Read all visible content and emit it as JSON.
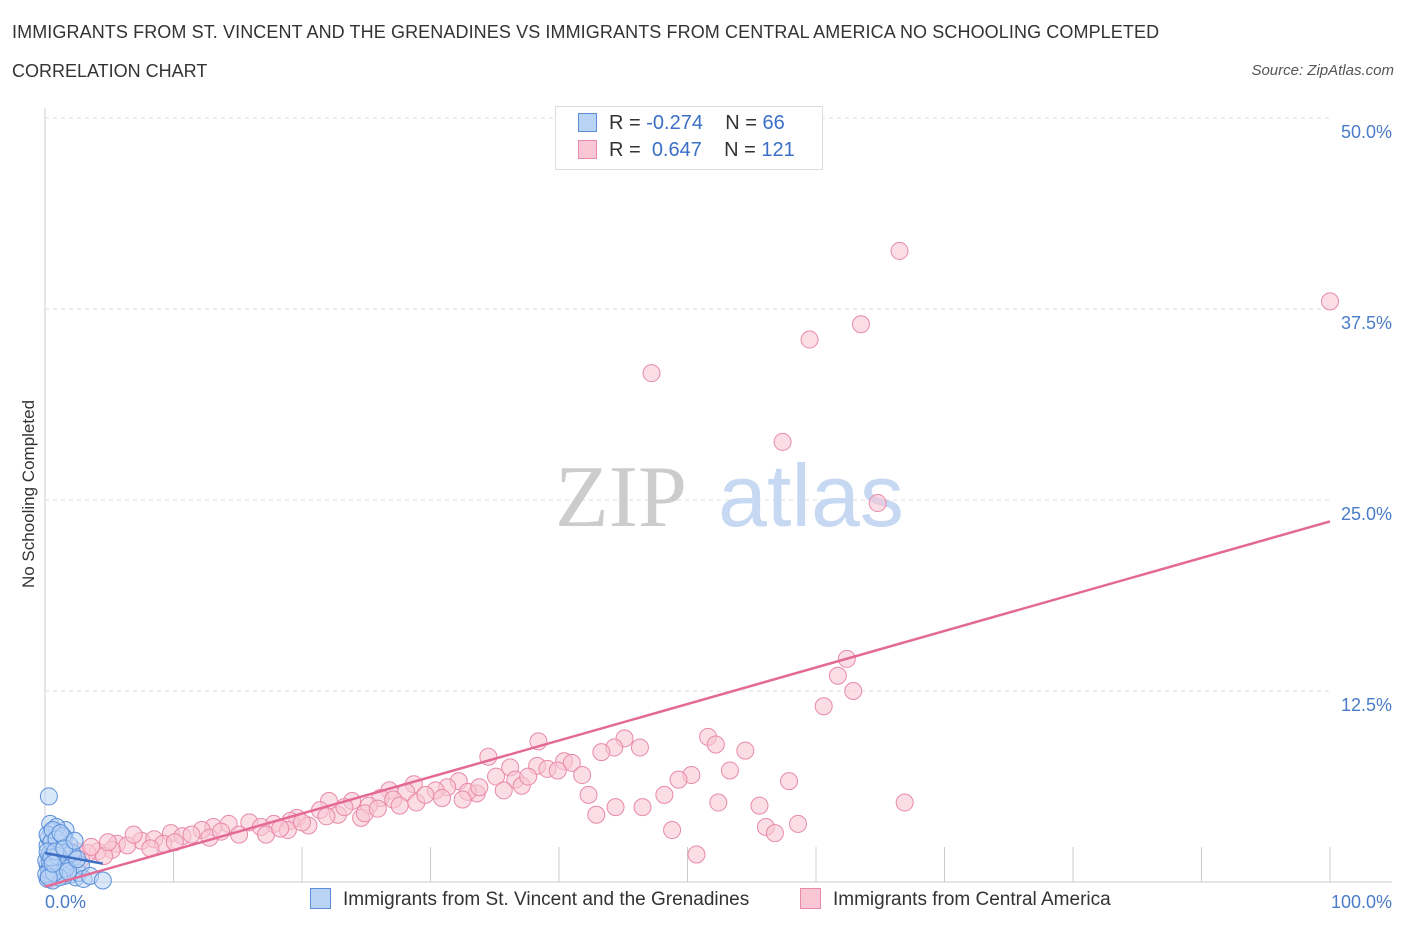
{
  "title": "IMMIGRANTS FROM ST. VINCENT AND THE GRENADINES VS IMMIGRANTS FROM CENTRAL AMERICA NO SCHOOLING COMPLETED",
  "subtitle": "CORRELATION CHART",
  "source": "Source: ZipAtlas.com",
  "watermark": {
    "zip": "ZIP",
    "atlas": "atlas"
  },
  "legend": {
    "rows": [
      {
        "r_label": "R =",
        "r_value": "-0.274",
        "n_label": "N =",
        "n_value": "66"
      },
      {
        "r_label": "R =",
        "r_value": "0.647",
        "n_label": "N =",
        "n_value": "121"
      }
    ]
  },
  "bottom_legend": [
    {
      "label": "Immigrants from St. Vincent and the Grenadines"
    },
    {
      "label": "Immigrants from Central America"
    }
  ],
  "colors": {
    "blue_fill": "#b9d3f5",
    "blue_stroke": "#5a8fd8",
    "pink_fill": "#f9c6d6",
    "pink_stroke": "#e88aa8",
    "trend_pink": "#e46a96",
    "trend_blue": "#3d6fc4",
    "grid": "#dddddd",
    "tick_text": "#4a7cc7"
  },
  "chart_data": {
    "type": "scatter",
    "title": "IMMIGRANTS FROM ST. VINCENT AND THE GRENADINES VS IMMIGRANTS FROM CENTRAL AMERICA NO SCHOOLING COMPLETED",
    "xlabel": "",
    "ylabel": "No Schooling Completed",
    "xlim": [
      0,
      100
    ],
    "ylim": [
      0,
      50
    ],
    "x_tick_labels": [
      "0.0%",
      "100.0%"
    ],
    "y_ticks": [
      12.5,
      25,
      37.5,
      50
    ],
    "y_tick_labels": [
      "12.5%",
      "25.0%",
      "37.5%",
      "50.0%"
    ],
    "grid": true,
    "legend_position": "top-center",
    "series": [
      {
        "name": "Immigrants from St. Vincent and the Grenadines",
        "R": -0.274,
        "N": 66,
        "trend": [
          [
            0,
            1.9
          ],
          [
            4.5,
            1.2
          ]
        ],
        "points": [
          [
            0.3,
            5.6
          ],
          [
            0.4,
            3.8
          ],
          [
            0.5,
            3.3
          ],
          [
            1.6,
            3.4
          ],
          [
            1.5,
            2.9
          ],
          [
            0.2,
            2.4
          ],
          [
            0.6,
            2.2
          ],
          [
            0.8,
            2.7
          ],
          [
            1.0,
            3.1
          ],
          [
            1.2,
            2.5
          ],
          [
            0.9,
            1.9
          ],
          [
            0.3,
            1.7
          ],
          [
            0.7,
            1.5
          ],
          [
            1.4,
            1.8
          ],
          [
            1.8,
            2.0
          ],
          [
            0.2,
            1.1
          ],
          [
            0.5,
            0.9
          ],
          [
            1.1,
            1.2
          ],
          [
            0.4,
            0.6
          ],
          [
            0.8,
            0.4
          ],
          [
            1.3,
            0.7
          ],
          [
            2.0,
            0.5
          ],
          [
            2.4,
            0.3
          ],
          [
            0.2,
            0.2
          ],
          [
            0.6,
            0.1
          ],
          [
            1.7,
            1.3
          ],
          [
            0.3,
            2.9
          ],
          [
            0.9,
            3.6
          ],
          [
            0.1,
            1.4
          ],
          [
            1.0,
            0.8
          ],
          [
            2.2,
            1.6
          ],
          [
            0.7,
            2.3
          ],
          [
            1.5,
            0.4
          ],
          [
            0.4,
            1.9
          ],
          [
            1.2,
            1.4
          ],
          [
            2.6,
            0.6
          ],
          [
            0.2,
            3.1
          ],
          [
            0.8,
            1.0
          ],
          [
            1.9,
            2.4
          ],
          [
            0.5,
            2.6
          ],
          [
            1.3,
            2.1
          ],
          [
            0.3,
            0.8
          ],
          [
            1.6,
            0.9
          ],
          [
            2.8,
            1.1
          ],
          [
            0.6,
            3.4
          ],
          [
            1.1,
            0.3
          ],
          [
            0.9,
            2.8
          ],
          [
            0.4,
            1.3
          ],
          [
            2.1,
            1.9
          ],
          [
            1.4,
            3.0
          ],
          [
            0.1,
            0.5
          ],
          [
            3.0,
            0.2
          ],
          [
            0.7,
            0.6
          ],
          [
            1.8,
            0.7
          ],
          [
            0.2,
            2.0
          ],
          [
            1.0,
            1.7
          ],
          [
            2.5,
            1.5
          ],
          [
            0.5,
            1.6
          ],
          [
            1.2,
            3.2
          ],
          [
            0.8,
            2.0
          ],
          [
            3.5,
            0.4
          ],
          [
            0.3,
            0.3
          ],
          [
            1.5,
            2.2
          ],
          [
            2.3,
            2.7
          ],
          [
            0.6,
            1.2
          ],
          [
            4.5,
            0.1
          ]
        ]
      },
      {
        "name": "Immigrants from Central America",
        "R": 0.647,
        "N": 121,
        "trend": [
          [
            0,
            -0.3
          ],
          [
            100,
            23.6
          ]
        ],
        "points": [
          [
            66.5,
            41.3
          ],
          [
            100,
            38.0
          ],
          [
            63.5,
            36.5
          ],
          [
            59.5,
            35.5
          ],
          [
            47.2,
            33.3
          ],
          [
            57.4,
            28.8
          ],
          [
            64.8,
            24.8
          ],
          [
            62.4,
            14.6
          ],
          [
            61.7,
            13.5
          ],
          [
            62.9,
            12.5
          ],
          [
            60.6,
            11.5
          ],
          [
            51.6,
            9.5
          ],
          [
            52.2,
            9.0
          ],
          [
            45.1,
            9.4
          ],
          [
            44.3,
            8.8
          ],
          [
            46.3,
            8.8
          ],
          [
            54.5,
            8.6
          ],
          [
            43.3,
            8.5
          ],
          [
            38.4,
            9.2
          ],
          [
            34.5,
            8.2
          ],
          [
            40.4,
            7.9
          ],
          [
            41.0,
            7.8
          ],
          [
            38.3,
            7.6
          ],
          [
            39.1,
            7.4
          ],
          [
            36.2,
            7.5
          ],
          [
            39.9,
            7.3
          ],
          [
            53.3,
            7.3
          ],
          [
            50.3,
            7.0
          ],
          [
            41.8,
            7.0
          ],
          [
            35.1,
            6.9
          ],
          [
            36.6,
            6.7
          ],
          [
            49.3,
            6.7
          ],
          [
            57.9,
            6.6
          ],
          [
            32.2,
            6.6
          ],
          [
            37.1,
            6.3
          ],
          [
            31.3,
            6.2
          ],
          [
            28.7,
            6.4
          ],
          [
            30.4,
            6.0
          ],
          [
            26.8,
            6.0
          ],
          [
            28.1,
            5.9
          ],
          [
            33.6,
            5.8
          ],
          [
            32.9,
            5.9
          ],
          [
            42.3,
            5.7
          ],
          [
            48.2,
            5.7
          ],
          [
            26.1,
            5.5
          ],
          [
            27.1,
            5.4
          ],
          [
            23.9,
            5.3
          ],
          [
            28.9,
            5.2
          ],
          [
            25.2,
            5.0
          ],
          [
            22.1,
            5.3
          ],
          [
            52.4,
            5.2
          ],
          [
            55.6,
            5.0
          ],
          [
            66.9,
            5.2
          ],
          [
            44.4,
            4.9
          ],
          [
            46.5,
            4.9
          ],
          [
            21.4,
            4.7
          ],
          [
            22.8,
            4.4
          ],
          [
            24.6,
            4.2
          ],
          [
            19.6,
            4.2
          ],
          [
            19.1,
            4.0
          ],
          [
            15.9,
            3.9
          ],
          [
            17.8,
            3.8
          ],
          [
            42.9,
            4.4
          ],
          [
            56.1,
            3.6
          ],
          [
            58.6,
            3.8
          ],
          [
            48.8,
            3.4
          ],
          [
            16.8,
            3.6
          ],
          [
            14.3,
            3.8
          ],
          [
            13.1,
            3.6
          ],
          [
            12.2,
            3.4
          ],
          [
            18.9,
            3.4
          ],
          [
            20.5,
            3.7
          ],
          [
            9.8,
            3.2
          ],
          [
            10.7,
            3.0
          ],
          [
            11.4,
            3.1
          ],
          [
            7.5,
            2.7
          ],
          [
            8.5,
            2.8
          ],
          [
            9.2,
            2.5
          ],
          [
            5.6,
            2.5
          ],
          [
            6.4,
            2.4
          ],
          [
            5.2,
            2.1
          ],
          [
            4.1,
            2.0
          ],
          [
            4.6,
            1.7
          ],
          [
            3.3,
            1.9
          ],
          [
            2.8,
            1.5
          ],
          [
            2.2,
            1.6
          ],
          [
            1.9,
            1.3
          ],
          [
            1.6,
            1.5
          ],
          [
            1.2,
            1.2
          ],
          [
            0.9,
            1.1
          ],
          [
            0.7,
            0.9
          ],
          [
            0.5,
            0.7
          ],
          [
            0.3,
            0.5
          ],
          [
            1.4,
            1.8
          ],
          [
            2.5,
            2.0
          ],
          [
            3.6,
            2.3
          ],
          [
            4.9,
            2.6
          ],
          [
            6.9,
            3.1
          ],
          [
            8.2,
            2.2
          ],
          [
            10.1,
            2.6
          ],
          [
            12.8,
            2.9
          ],
          [
            13.7,
            3.3
          ],
          [
            15.1,
            3.1
          ],
          [
            17.2,
            3.1
          ],
          [
            18.3,
            3.5
          ],
          [
            20.0,
            3.9
          ],
          [
            21.9,
            4.3
          ],
          [
            23.3,
            4.9
          ],
          [
            24.9,
            4.5
          ],
          [
            25.9,
            4.8
          ],
          [
            27.6,
            5.0
          ],
          [
            29.6,
            5.7
          ],
          [
            30.9,
            5.5
          ],
          [
            32.5,
            5.4
          ],
          [
            33.8,
            6.2
          ],
          [
            35.7,
            6.0
          ],
          [
            37.6,
            6.9
          ],
          [
            56.8,
            3.2
          ],
          [
            50.7,
            1.8
          ],
          [
            0.4,
            0.2
          ],
          [
            1.1,
            0.6
          ]
        ]
      }
    ]
  }
}
